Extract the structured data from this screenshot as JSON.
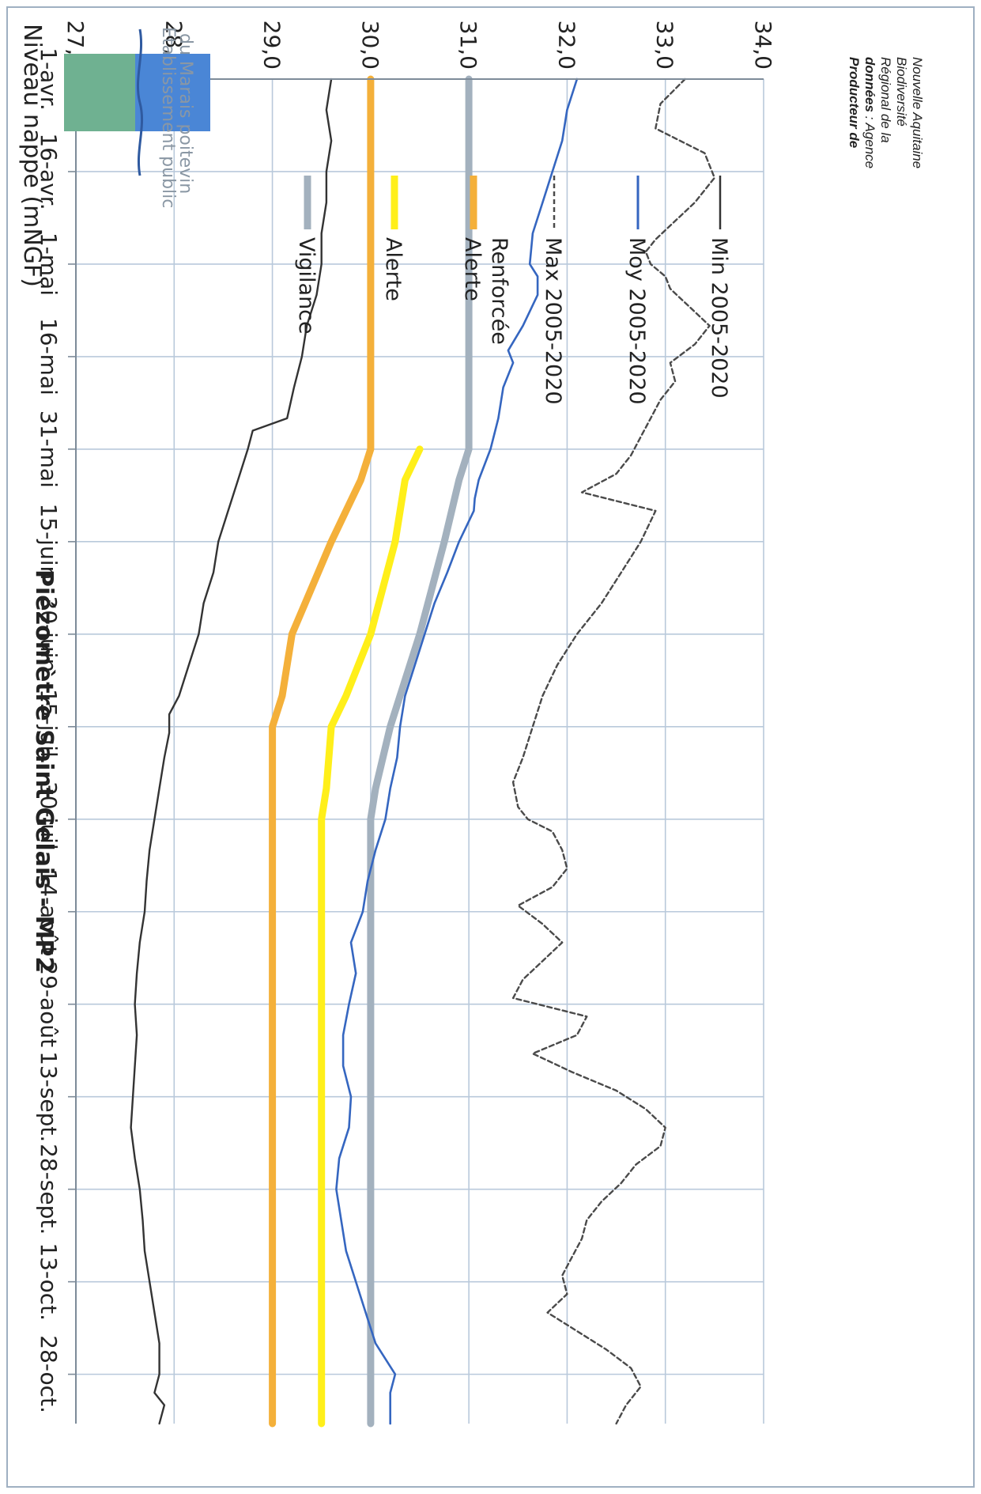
{
  "chart_data": {
    "type": "line",
    "title": "Piézomètre Saint Gelais - MP2",
    "ylabel": "Niveau nappe (mNGF)",
    "ylim": [
      27.0,
      34.0
    ],
    "yticks": [
      34.0,
      33.0,
      32.0,
      31.0,
      30.0,
      29.0,
      28.0,
      27.0
    ],
    "ytick_labels": [
      "34,0",
      "33,0",
      "32,0",
      "31,0",
      "30,0",
      "29,0",
      "28,0",
      "27,0"
    ],
    "x_start": "1-avr.",
    "x_end": "5-nov.",
    "x_range_days": [
      0,
      218
    ],
    "xticks": [
      0,
      15,
      30,
      45,
      60,
      75,
      90,
      105,
      120,
      135,
      150,
      165,
      180,
      195,
      210
    ],
    "xtick_labels": [
      "1-avr.",
      "16-avr.",
      "1-mai",
      "16-mai",
      "31-mai",
      "15-juin",
      "30-juin",
      "15-juil.",
      "30-juil.",
      "14-août",
      "29-août",
      "13-sept.",
      "28-sept.",
      "13-oct.",
      "28-oct."
    ],
    "grid": true,
    "legend_position": "right",
    "series": [
      {
        "name": "Max 2005-2020",
        "style": "dashed",
        "color": "#4a4a4a",
        "x": [
          0,
          4,
          8,
          12,
          16,
          20,
          23,
          26,
          28,
          30,
          32,
          34,
          37,
          40,
          43,
          46,
          49,
          52,
          55,
          58,
          61,
          64,
          67,
          70,
          75,
          80,
          85,
          90,
          95,
          100,
          105,
          110,
          114,
          118,
          120,
          122,
          125,
          128,
          131,
          134,
          137,
          140,
          143,
          146,
          149,
          152,
          155,
          158,
          161,
          164,
          167,
          170,
          173,
          176,
          179,
          182,
          185,
          188,
          191,
          194,
          197,
          200,
          203,
          206,
          209,
          212,
          215,
          218
        ],
        "values": [
          33.2,
          32.95,
          32.9,
          33.4,
          33.5,
          33.3,
          33.1,
          32.9,
          32.8,
          32.85,
          33.0,
          33.05,
          33.25,
          33.45,
          33.3,
          33.05,
          33.1,
          32.95,
          32.85,
          32.75,
          32.65,
          32.5,
          32.15,
          32.9,
          32.75,
          32.55,
          32.35,
          32.1,
          31.9,
          31.75,
          31.65,
          31.55,
          31.45,
          31.5,
          31.6,
          31.85,
          31.95,
          32.0,
          31.85,
          31.5,
          31.75,
          31.95,
          31.75,
          31.55,
          31.45,
          32.2,
          32.1,
          31.65,
          32.05,
          32.5,
          32.8,
          33.0,
          32.95,
          32.7,
          32.55,
          32.35,
          32.2,
          32.15,
          32.05,
          31.95,
          32.0,
          31.8,
          32.1,
          32.4,
          32.65,
          32.75,
          32.6,
          32.5
        ]
      },
      {
        "name": "Moy 2005-2020",
        "style": "solid",
        "color": "#3566c0",
        "x": [
          0,
          5,
          10,
          15,
          20,
          25,
          30,
          32,
          35,
          40,
          44,
          46,
          50,
          55,
          60,
          65,
          68,
          70,
          75,
          80,
          85,
          90,
          95,
          100,
          105,
          110,
          115,
          120,
          125,
          130,
          135,
          140,
          145,
          150,
          155,
          160,
          165,
          170,
          175,
          180,
          185,
          190,
          195,
          200,
          205,
          210,
          213,
          216,
          218
        ],
        "values": [
          32.1,
          32.0,
          31.95,
          31.85,
          31.75,
          31.65,
          31.62,
          31.7,
          31.7,
          31.55,
          31.4,
          31.45,
          31.35,
          31.3,
          31.22,
          31.1,
          31.06,
          31.05,
          30.9,
          30.78,
          30.65,
          30.55,
          30.45,
          30.35,
          30.3,
          30.27,
          30.2,
          30.15,
          30.05,
          29.97,
          29.92,
          29.8,
          29.85,
          29.78,
          29.72,
          29.72,
          29.8,
          29.78,
          29.68,
          29.65,
          29.7,
          29.75,
          29.85,
          29.95,
          30.05,
          30.25,
          30.2,
          30.2,
          30.2
        ]
      },
      {
        "name": "Min 2005-2020",
        "style": "solid",
        "color": "#333333",
        "x": [
          0,
          5,
          10,
          15,
          20,
          25,
          30,
          35,
          40,
          45,
          50,
          55,
          57,
          60,
          65,
          70,
          75,
          80,
          85,
          90,
          95,
          100,
          103,
          106,
          110,
          115,
          120,
          125,
          130,
          135,
          140,
          145,
          150,
          155,
          160,
          165,
          170,
          175,
          180,
          185,
          190,
          195,
          200,
          205,
          210,
          213,
          215,
          218
        ],
        "values": [
          29.6,
          29.55,
          29.6,
          29.55,
          29.55,
          29.5,
          29.5,
          29.45,
          29.35,
          29.3,
          29.22,
          29.15,
          28.8,
          28.75,
          28.65,
          28.55,
          28.45,
          28.4,
          28.3,
          28.25,
          28.15,
          28.05,
          27.95,
          27.95,
          27.9,
          27.85,
          27.8,
          27.75,
          27.72,
          27.7,
          27.65,
          27.62,
          27.6,
          27.62,
          27.6,
          27.58,
          27.56,
          27.6,
          27.65,
          27.68,
          27.7,
          27.75,
          27.8,
          27.85,
          27.85,
          27.8,
          27.9,
          27.85
        ]
      },
      {
        "name": "Vigilance",
        "style": "solid",
        "color": "#a3b1be",
        "x": [
          0,
          60,
          65,
          75,
          90,
          100,
          105,
          115,
          120,
          150,
          180,
          210,
          218
        ],
        "values": [
          31.0,
          31.0,
          30.9,
          30.75,
          30.5,
          30.3,
          30.2,
          30.05,
          30.0,
          30.0,
          30.0,
          30.0,
          30.0
        ]
      },
      {
        "name": "Alerte",
        "style": "solid",
        "color": "#ffef1a",
        "x": [
          60,
          65,
          75,
          90,
          100,
          105,
          115,
          120,
          150,
          180,
          210,
          218
        ],
        "values": [
          30.5,
          30.35,
          30.25,
          30.0,
          29.75,
          29.6,
          29.55,
          29.5,
          29.5,
          29.5,
          29.5,
          29.5
        ]
      },
      {
        "name": "Alerte Renforcée",
        "style": "solid",
        "color": "#f4b03a",
        "x": [
          0,
          60,
          65,
          75,
          90,
          100,
          105,
          120,
          150,
          180,
          210,
          218
        ],
        "values": [
          30.0,
          30.0,
          29.9,
          29.6,
          29.2,
          29.1,
          29.0,
          29.0,
          29.0,
          29.0,
          29.0,
          29.0
        ]
      }
    ]
  },
  "legend": {
    "vigilance": "Vigilance",
    "alerte": "Alerte",
    "renforcee_line1": "Alerte",
    "renforcee_line2": "Renforcée",
    "max": "Max 2005-2020",
    "moy": "Moy 2005-2020",
    "min": "Min 2005-2020"
  },
  "organization": {
    "line1": "Etablissement public",
    "line2": "du Marais poitevin",
    "logo_green": "#6fb191",
    "logo_blue": "#4a86d6"
  },
  "credit": {
    "bold1": "Producteur de",
    "bold2": "données",
    "line2_rest": " : Agence",
    "line3": "Régional de la",
    "line4": "Biodiversité",
    "line5": "Nouvelle Aquitaine"
  }
}
